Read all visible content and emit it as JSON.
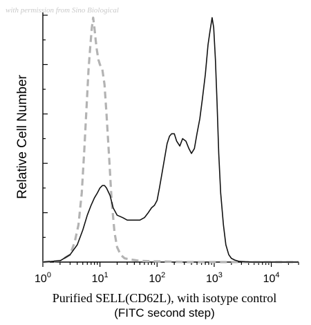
{
  "watermark": "with permission from Sino Biological",
  "chart_data": {
    "type": "line",
    "xscale": "log",
    "xlim": [
      1,
      30000
    ],
    "ylim": [
      0,
      100
    ],
    "xticks": [
      {
        "base": "10",
        "exp": "0",
        "value": 1
      },
      {
        "base": "10",
        "exp": "1",
        "value": 10
      },
      {
        "base": "10",
        "exp": "2",
        "value": 100
      },
      {
        "base": "10",
        "exp": "3",
        "value": 1000
      },
      {
        "base": "10",
        "exp": "4",
        "value": 10000
      }
    ],
    "ylabel": "Relative Cell Number",
    "caption_line1": "Purified SELL(CD62L), with isotype control",
    "caption_line2": "(FITC second step)",
    "grid": false,
    "series": [
      {
        "style": "dashed",
        "color": "#b3b3b3",
        "x": [
          1,
          2,
          3,
          3.6,
          4.2,
          4.8,
          5.3,
          5.8,
          6.3,
          6.8,
          7.2,
          7.6,
          8,
          8.4,
          8.8,
          9.4,
          10,
          11,
          12,
          13,
          14.5,
          16,
          18,
          20,
          23,
          27,
          35,
          50,
          80,
          150,
          300,
          1000,
          30000
        ],
        "y": [
          0,
          0.5,
          3,
          8,
          15,
          28,
          45,
          62,
          78,
          88,
          95,
          99,
          95,
          90,
          86,
          82,
          80,
          78,
          72,
          60,
          42,
          25,
          12,
          6,
          3,
          1.5,
          1,
          0.5,
          0.3,
          0.2,
          0,
          0,
          0
        ]
      },
      {
        "style": "solid",
        "color": "#111111",
        "x": [
          1,
          2,
          3,
          4,
          5,
          6,
          7,
          8,
          9,
          10,
          11,
          12,
          13,
          15,
          17,
          20,
          25,
          30,
          40,
          50,
          60,
          70,
          80,
          90,
          100,
          110,
          120,
          135,
          150,
          165,
          180,
          200,
          220,
          250,
          280,
          320,
          360,
          400,
          450,
          500,
          560,
          620,
          700,
          780,
          850,
          920,
          980,
          1050,
          1120,
          1200,
          1300,
          1450,
          1600,
          1800,
          2000,
          2300,
          2700,
          3500,
          5000,
          30000
        ],
        "y": [
          0,
          0.5,
          3,
          7,
          13,
          19,
          23,
          26,
          28,
          30,
          31,
          31,
          30,
          27,
          22,
          19,
          18,
          17,
          17,
          17,
          18,
          20,
          22,
          23,
          25,
          30,
          35,
          42,
          48,
          51,
          52,
          52,
          49,
          47,
          50,
          49,
          46,
          44,
          46,
          52,
          58,
          66,
          76,
          88,
          94,
          99,
          95,
          82,
          65,
          44,
          28,
          15,
          7,
          3,
          1.5,
          0.8,
          0.3,
          0.1,
          0,
          0
        ]
      }
    ]
  }
}
